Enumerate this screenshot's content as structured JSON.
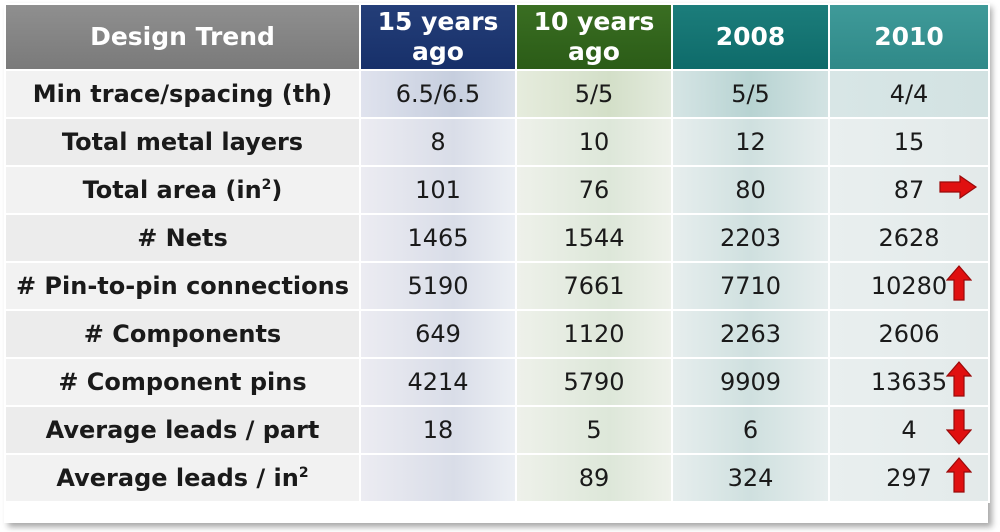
{
  "table": {
    "header_label": "Design Trend",
    "columns": [
      {
        "line1": "15 years",
        "line2": "ago"
      },
      {
        "line1": "10 years",
        "line2": "ago"
      },
      {
        "line1": "2008",
        "line2": ""
      },
      {
        "line1": "2010",
        "line2": ""
      }
    ],
    "rows": [
      {
        "label": "Min trace/spacing (th)",
        "label_sup": "",
        "values": [
          "6.5/6.5",
          "5/5",
          "5/5",
          "4/4"
        ],
        "style": "normal",
        "trend": ""
      },
      {
        "label": "Total metal layers",
        "label_sup": "",
        "values": [
          "8",
          "10",
          "12",
          "15"
        ],
        "style": "dim",
        "trend": ""
      },
      {
        "label": "Total area (in",
        "label_sup": "2",
        "label_suffix": ")",
        "values": [
          "101",
          "76",
          "80",
          "87"
        ],
        "style": "normal",
        "trend": "right-arrow-icon"
      },
      {
        "label": "# Nets",
        "label_sup": "",
        "values": [
          "1465",
          "1544",
          "2203",
          "2628"
        ],
        "style": "normal",
        "trend": ""
      },
      {
        "label": "# Pin-to-pin connections",
        "label_sup": "",
        "values": [
          "5190",
          "7661",
          "7710",
          "10280"
        ],
        "style": "normal",
        "trend": "up-arrow-icon"
      },
      {
        "label": "# Components",
        "label_sup": "",
        "values": [
          "649",
          "1120",
          "2263",
          "2606"
        ],
        "style": "normal",
        "trend": ""
      },
      {
        "label": "# Component pins",
        "label_sup": "",
        "values": [
          "4214",
          "5790",
          "9909",
          "13635"
        ],
        "style": "normal",
        "trend": "up-arrow-icon"
      },
      {
        "label": "Average leads /  part",
        "label_sup": "",
        "values": [
          "18",
          "5",
          "6",
          "4"
        ],
        "style": "normal",
        "trend": "down-arrow-icon"
      },
      {
        "label": "Average leads /  in",
        "label_sup": "2",
        "label_suffix": "",
        "values": [
          "",
          "89",
          "324",
          "297"
        ],
        "style": "normal",
        "trend": "up-arrow-icon"
      }
    ]
  },
  "colors": {
    "header_label_bg": "#858585",
    "col1_header_bg": "#1f3872",
    "col2_header_bg": "#33661d",
    "col3_header_bg": "#157473",
    "col4_header_bg": "#379190",
    "highlight_text": "#b51a1a",
    "arrow_fill": "#e01010"
  }
}
